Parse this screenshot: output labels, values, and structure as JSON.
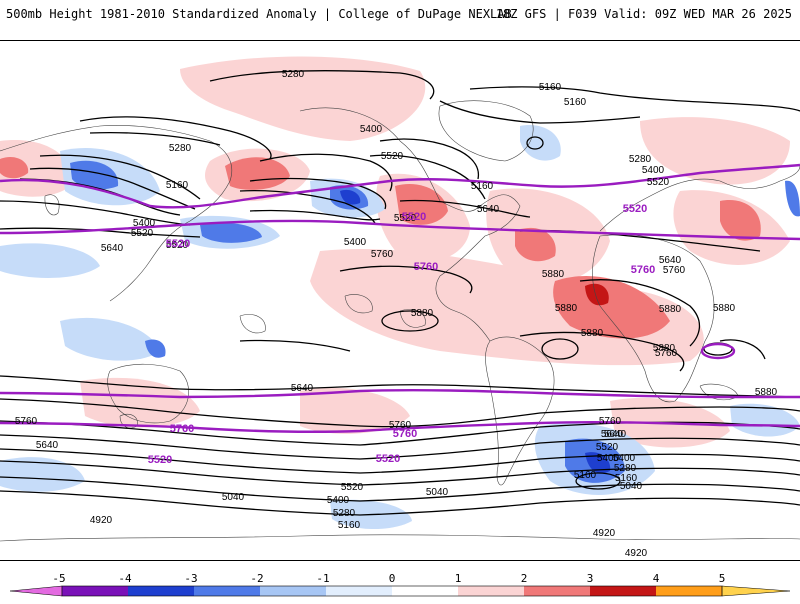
{
  "header": {
    "title": "500mb Height 1981-2010 Standardized Anomaly | College of DuPage NEXLAB",
    "run_info": "18Z GFS | F039 Valid: 09Z WED MAR 26 2025"
  },
  "colors": {
    "anom_neg5": "#e36ae0",
    "anom_neg4": "#7a11b8",
    "anom_neg3": "#1e3fcf",
    "anom_neg2": "#4f7ae8",
    "anom_neg1": "#c6dcf9",
    "anom_zero": "#ffffff",
    "anom_pos1": "#fbd4d4",
    "anom_pos2": "#f07878",
    "anom_pos3": "#c41616",
    "anom_pos4": "#ff9e1a",
    "anom_pos5": "#ffd24d",
    "contour": "#000000",
    "highlight_contour": "#9a1cc0",
    "coastline": "#333333"
  },
  "colorbar": {
    "ticks": [
      "-5",
      "-4",
      "-3",
      "-2",
      "-1",
      "0",
      "1",
      "2",
      "3",
      "4",
      "5"
    ]
  },
  "contour_labels": [
    "5280",
    "5160",
    "5160",
    "5400",
    "5280",
    "5520",
    "5160",
    "5280",
    "5400",
    "5520",
    "5160",
    "5640",
    "5520",
    "5520",
    "5400",
    "5640",
    "5520",
    "5400",
    "5640",
    "5760",
    "5880",
    "5880",
    "5640",
    "5760",
    "5880",
    "5880",
    "5880",
    "5880",
    "5880",
    "5880",
    "5760",
    "5760",
    "5760",
    "5640",
    "5400",
    "5160",
    "5640",
    "5520",
    "5400",
    "5280",
    "5160",
    "5040",
    "5040",
    "4920",
    "5760",
    "5640",
    "5520",
    "5400",
    "5280",
    "5160",
    "5040",
    "4920",
    "4920"
  ],
  "highlight_labels": [
    "5520",
    "5520",
    "5520",
    "5760",
    "5760",
    "5760",
    "5760",
    "5520",
    "5520"
  ]
}
